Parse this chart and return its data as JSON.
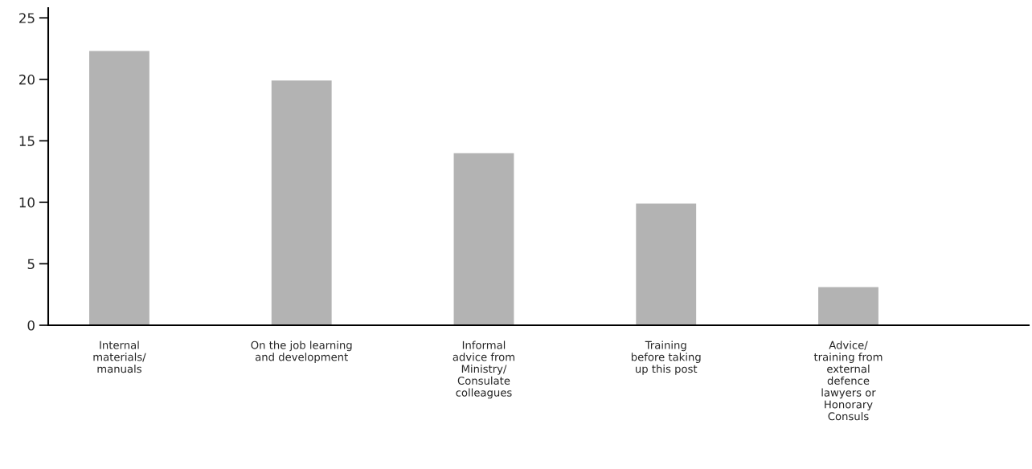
{
  "chart_data": {
    "type": "bar",
    "categories": [
      "Internal\nmaterials/\nmanuals",
      "On the job learning\nand development",
      "Informal\nadvice from\nMinistry/\nConsulate\ncolleagues",
      "Training\nbefore taking\nup this post",
      "Advice/\ntraining from\nexternal\ndefence\nlawyers or\nHonorary\nConsuls"
    ],
    "values": [
      22.3,
      19.9,
      14.0,
      9.9,
      3.1
    ],
    "color": "#b3b3b3",
    "ylim": [
      0,
      25.8
    ],
    "yticks": [
      0,
      5,
      10,
      15,
      20,
      25
    ],
    "grid": false
  }
}
